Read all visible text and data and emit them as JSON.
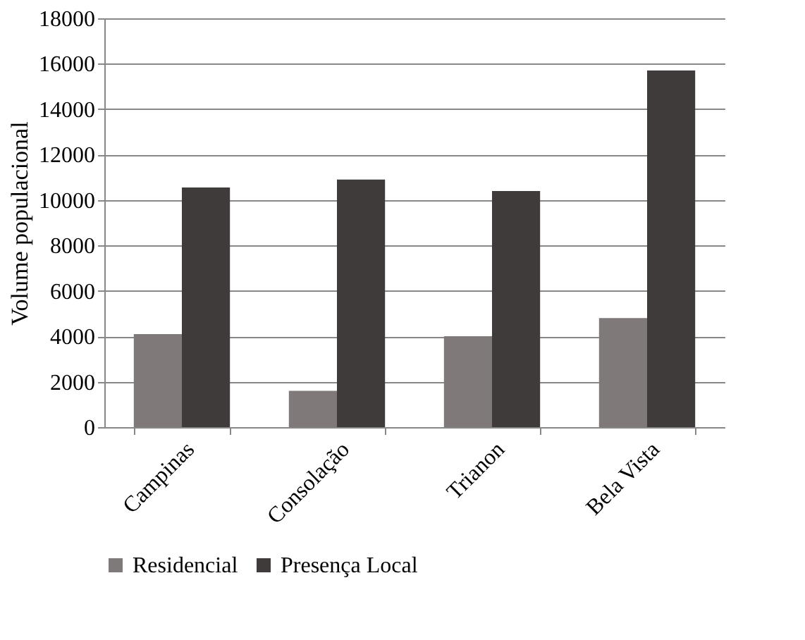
{
  "chart_data": {
    "type": "bar",
    "ylabel": "Volume populacional",
    "categories": [
      "Campinas",
      "Consolação",
      "Trianon",
      "Bela Vista"
    ],
    "series": [
      {
        "name": "Residencial",
        "color": "#7f7979",
        "values": [
          4100,
          1600,
          4000,
          4800
        ]
      },
      {
        "name": "Presença Local",
        "color": "#3f3b3b",
        "values": [
          10550,
          10900,
          10400,
          15700
        ]
      }
    ],
    "ylim": [
      0,
      18000
    ],
    "yticks": [
      0,
      2000,
      4000,
      6000,
      8000,
      10000,
      12000,
      14000,
      16000,
      18000
    ],
    "grid": "y",
    "legend": "bottom"
  }
}
